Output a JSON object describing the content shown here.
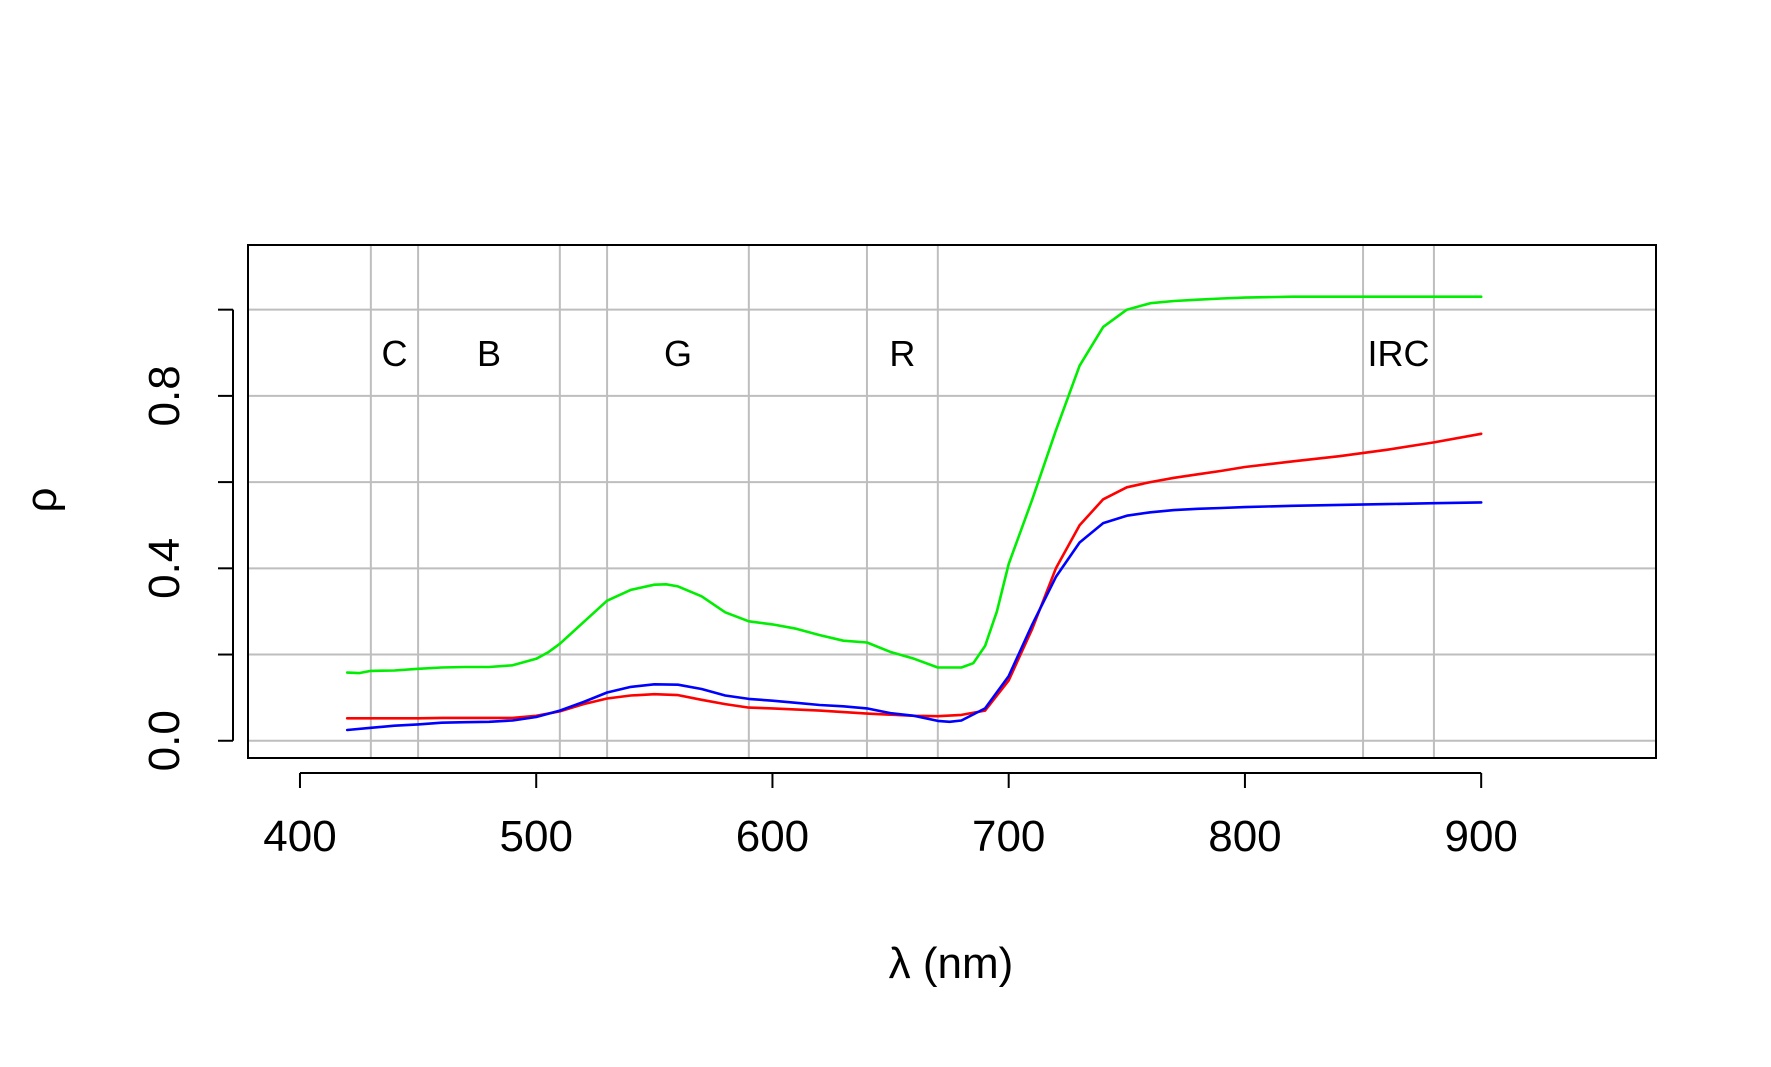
{
  "chart_data": {
    "type": "line",
    "title": "",
    "xlabel": "λ (nm)",
    "ylabel": "ρ",
    "xlim": [
      378,
      974
    ],
    "ylim": [
      -0.04,
      1.15
    ],
    "x_ticks": [
      400,
      500,
      600,
      700,
      800,
      900
    ],
    "y_ticks": [
      0.0,
      0.2,
      0.4,
      0.6,
      0.8,
      1.0
    ],
    "y_tick_labels": [
      "0.0",
      "",
      "0.4",
      "",
      "0.8",
      ""
    ],
    "grid": true,
    "grid_x": [
      430,
      450,
      510,
      530,
      590,
      640,
      670,
      850,
      880
    ],
    "grid_y": [
      0.0,
      0.2,
      0.4,
      0.6,
      0.8,
      1.0
    ],
    "band_labels": [
      {
        "text": "C",
        "x": 440
      },
      {
        "text": "B",
        "x": 480
      },
      {
        "text": "G",
        "x": 560
      },
      {
        "text": "R",
        "x": 655
      },
      {
        "text": "IRC",
        "x": 865
      }
    ],
    "band_label_y": 0.9,
    "series": [
      {
        "color": "#00ee00",
        "points": [
          [
            420,
            0.158
          ],
          [
            425,
            0.157
          ],
          [
            430,
            0.162
          ],
          [
            440,
            0.163
          ],
          [
            450,
            0.167
          ],
          [
            460,
            0.17
          ],
          [
            470,
            0.171
          ],
          [
            480,
            0.171
          ],
          [
            490,
            0.175
          ],
          [
            500,
            0.19
          ],
          [
            505,
            0.205
          ],
          [
            510,
            0.225
          ],
          [
            520,
            0.275
          ],
          [
            530,
            0.325
          ],
          [
            540,
            0.35
          ],
          [
            550,
            0.362
          ],
          [
            555,
            0.363
          ],
          [
            560,
            0.358
          ],
          [
            570,
            0.335
          ],
          [
            580,
            0.298
          ],
          [
            590,
            0.277
          ],
          [
            600,
            0.27
          ],
          [
            610,
            0.26
          ],
          [
            620,
            0.245
          ],
          [
            630,
            0.232
          ],
          [
            640,
            0.228
          ],
          [
            650,
            0.206
          ],
          [
            660,
            0.19
          ],
          [
            670,
            0.17
          ],
          [
            680,
            0.17
          ],
          [
            685,
            0.18
          ],
          [
            690,
            0.22
          ],
          [
            695,
            0.3
          ],
          [
            700,
            0.41
          ],
          [
            710,
            0.56
          ],
          [
            720,
            0.72
          ],
          [
            730,
            0.87
          ],
          [
            740,
            0.96
          ],
          [
            750,
            1.0
          ],
          [
            760,
            1.015
          ],
          [
            770,
            1.02
          ],
          [
            780,
            1.023
          ],
          [
            790,
            1.026
          ],
          [
            800,
            1.028
          ],
          [
            820,
            1.03
          ],
          [
            840,
            1.03
          ],
          [
            860,
            1.03
          ],
          [
            880,
            1.03
          ],
          [
            900,
            1.03
          ]
        ]
      },
      {
        "color": "#ff0000",
        "points": [
          [
            420,
            0.052
          ],
          [
            430,
            0.052
          ],
          [
            440,
            0.052
          ],
          [
            450,
            0.052
          ],
          [
            460,
            0.053
          ],
          [
            470,
            0.053
          ],
          [
            480,
            0.053
          ],
          [
            490,
            0.053
          ],
          [
            500,
            0.058
          ],
          [
            510,
            0.068
          ],
          [
            520,
            0.085
          ],
          [
            530,
            0.098
          ],
          [
            540,
            0.105
          ],
          [
            550,
            0.108
          ],
          [
            560,
            0.106
          ],
          [
            570,
            0.095
          ],
          [
            580,
            0.085
          ],
          [
            590,
            0.077
          ],
          [
            600,
            0.075
          ],
          [
            620,
            0.07
          ],
          [
            640,
            0.063
          ],
          [
            660,
            0.058
          ],
          [
            670,
            0.057
          ],
          [
            680,
            0.06
          ],
          [
            690,
            0.07
          ],
          [
            700,
            0.14
          ],
          [
            710,
            0.26
          ],
          [
            720,
            0.4
          ],
          [
            730,
            0.5
          ],
          [
            740,
            0.56
          ],
          [
            750,
            0.588
          ],
          [
            760,
            0.6
          ],
          [
            770,
            0.61
          ],
          [
            780,
            0.618
          ],
          [
            790,
            0.626
          ],
          [
            800,
            0.635
          ],
          [
            820,
            0.648
          ],
          [
            840,
            0.66
          ],
          [
            860,
            0.675
          ],
          [
            880,
            0.692
          ],
          [
            900,
            0.712
          ]
        ]
      },
      {
        "color": "#0000ff",
        "points": [
          [
            420,
            0.025
          ],
          [
            430,
            0.03
          ],
          [
            440,
            0.035
          ],
          [
            450,
            0.038
          ],
          [
            460,
            0.042
          ],
          [
            470,
            0.043
          ],
          [
            480,
            0.044
          ],
          [
            490,
            0.047
          ],
          [
            500,
            0.055
          ],
          [
            510,
            0.07
          ],
          [
            520,
            0.09
          ],
          [
            530,
            0.112
          ],
          [
            540,
            0.125
          ],
          [
            550,
            0.131
          ],
          [
            560,
            0.13
          ],
          [
            570,
            0.12
          ],
          [
            580,
            0.105
          ],
          [
            590,
            0.097
          ],
          [
            600,
            0.093
          ],
          [
            610,
            0.088
          ],
          [
            620,
            0.083
          ],
          [
            630,
            0.08
          ],
          [
            640,
            0.075
          ],
          [
            650,
            0.064
          ],
          [
            660,
            0.058
          ],
          [
            670,
            0.046
          ],
          [
            675,
            0.044
          ],
          [
            680,
            0.047
          ],
          [
            690,
            0.075
          ],
          [
            700,
            0.15
          ],
          [
            710,
            0.27
          ],
          [
            720,
            0.38
          ],
          [
            730,
            0.46
          ],
          [
            740,
            0.505
          ],
          [
            750,
            0.522
          ],
          [
            760,
            0.53
          ],
          [
            770,
            0.535
          ],
          [
            780,
            0.538
          ],
          [
            790,
            0.54
          ],
          [
            800,
            0.542
          ],
          [
            820,
            0.545
          ],
          [
            840,
            0.547
          ],
          [
            860,
            0.549
          ],
          [
            880,
            0.551
          ],
          [
            900,
            0.553
          ]
        ]
      }
    ]
  }
}
